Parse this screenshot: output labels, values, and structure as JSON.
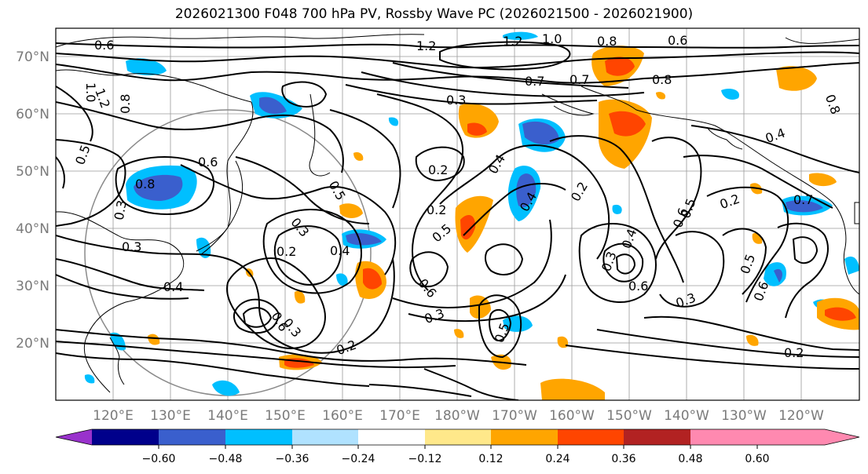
{
  "title": "2026021300 F048 700 hPa PV, Rossby Wave PC (2026021500 - 2026021900)",
  "map": {
    "lat_labels": [
      "70°N",
      "60°N",
      "50°N",
      "40°N",
      "30°N",
      "20°N"
    ],
    "lon_labels": [
      "120°E",
      "130°E",
      "140°E",
      "150°E",
      "160°E",
      "170°E",
      "180°W",
      "170°W",
      "160°W",
      "150°W",
      "140°W",
      "130°W",
      "120°W"
    ],
    "contour_labels": [
      "0.6",
      "1.2",
      "1.2",
      "1.0",
      "0.8",
      "0.6",
      "0.7",
      "0.8",
      "0.7",
      "0.3",
      "1.0",
      "1.2",
      "0.8",
      "0.5",
      "0.6",
      "0.8",
      "0.3",
      "0.3",
      "0.2",
      "0.4",
      "0.2",
      "0.5",
      "0.3",
      "0.2",
      "0.4",
      "0.5",
      "0.6",
      "0.3",
      "0.2",
      "0.4",
      "0.4",
      "0.2",
      "0.6",
      "0.6",
      "0.3",
      "0.5",
      "0.6",
      "0.3",
      "0.5",
      "0.4",
      "0.3",
      "0.2",
      "0.2",
      "0.4",
      "0.8",
      "0.6",
      "0.7",
      "0.5"
    ]
  },
  "colorbar": {
    "ticks": [
      "−0.60",
      "−0.48",
      "−0.36",
      "−0.24",
      "−0.12",
      "0.12",
      "0.24",
      "0.36",
      "0.48",
      "0.60"
    ],
    "colors": [
      "#9932cc",
      "#00008b",
      "#3a5fcd",
      "#00bfff",
      "#b0e2ff",
      "#ffffff",
      "#ffe88a",
      "#ffa500",
      "#ff4500",
      "#b22222",
      "#ff89b0"
    ]
  }
}
